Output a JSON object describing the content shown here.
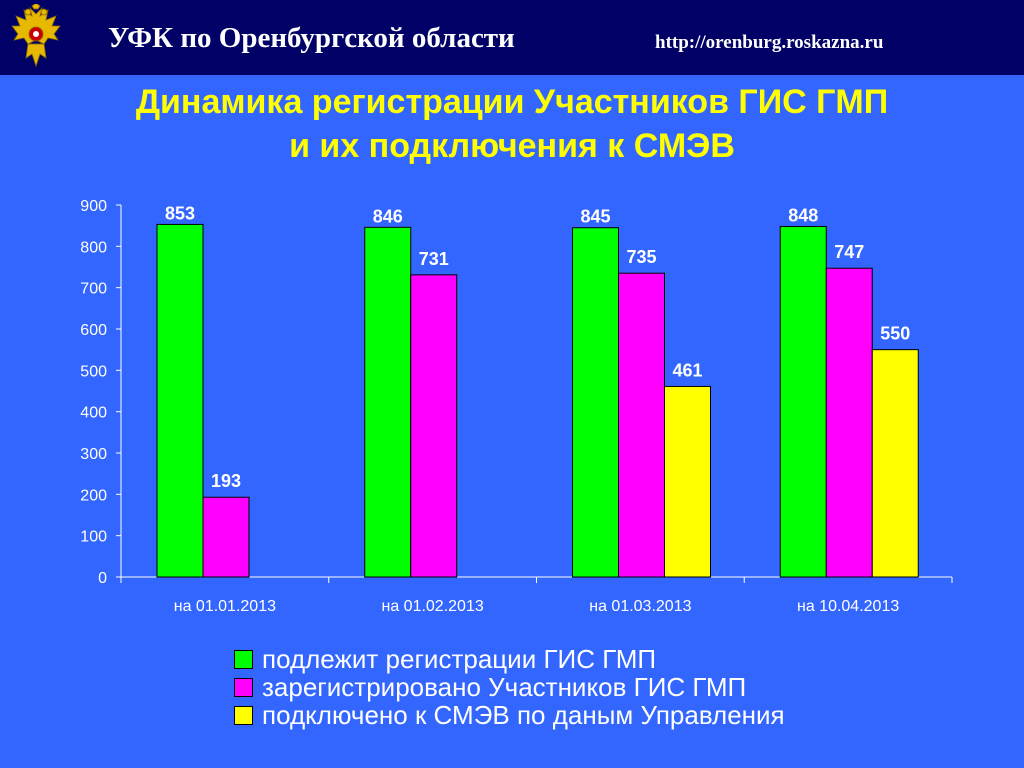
{
  "header": {
    "title": "УФК по Оренбургской области",
    "url": "http://orenburg.roskazna.ru"
  },
  "slide_title": {
    "line1": "Динамика регистрации Участников ГИС ГМП",
    "line2": "и их подключения к СМЭВ"
  },
  "colors": {
    "background": "#3366FF",
    "header_bg": "#000066",
    "title": "#FFFF00",
    "series_green": "#00FF00",
    "series_magenta": "#FF00FF",
    "series_yellow": "#FFFF00"
  },
  "chart_data": {
    "type": "bar",
    "categories": [
      "на 01.01.2013",
      "на  01.02.2013",
      "на 01.03.2013",
      "на 10.04.2013"
    ],
    "series": [
      {
        "name": "подлежит регистрации ГИС ГМП",
        "color": "#00FF00",
        "values": [
          853,
          846,
          845,
          848
        ]
      },
      {
        "name": "зарегистрировано Участников ГИС ГМП",
        "color": "#FF00FF",
        "values": [
          193,
          731,
          735,
          747
        ]
      },
      {
        "name": "подключено к СМЭВ по даным Управления",
        "color": "#FFFF00",
        "values": [
          null,
          null,
          461,
          550
        ]
      }
    ],
    "ylim": [
      0,
      900
    ],
    "yticks": [
      0,
      100,
      200,
      300,
      400,
      500,
      600,
      700,
      800,
      900
    ],
    "data_labels": true,
    "legend_position": "bottom",
    "grid": false
  }
}
